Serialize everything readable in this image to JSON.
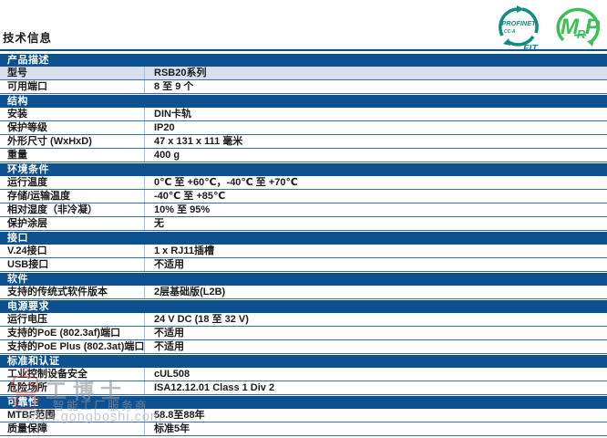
{
  "page": {
    "title": "技术信息"
  },
  "logos": {
    "profinet": {
      "name": "PROFINET",
      "variant": "CC-A",
      "sub": "FIT",
      "color": "#0d8e7e"
    },
    "mrp": {
      "m": "M",
      "r": "R",
      "p": "P",
      "color": "#3cbf55"
    }
  },
  "table": {
    "sections": [
      {
        "title": "产品描述",
        "rows": [
          {
            "label": "型号",
            "value": "RSB20系列",
            "highlight": true
          },
          {
            "label": "可用端口",
            "value": "8 至 9 个",
            "highlight": false
          }
        ]
      },
      {
        "title": "结构",
        "rows": [
          {
            "label": "安装",
            "value": "DIN卡轨",
            "highlight": false
          },
          {
            "label": "保护等级",
            "value": "IP20",
            "highlight": false
          },
          {
            "label": "外形尺寸 (WxHxD)",
            "value": "47 x 131 x 111 毫米",
            "highlight": false
          },
          {
            "label": "重量",
            "value": "400 g",
            "highlight": false
          }
        ]
      },
      {
        "title": "环境条件",
        "rows": [
          {
            "label": "运行温度",
            "value": "0℃ 至 +60℃，-40℃ 至 +70℃",
            "highlight": false
          },
          {
            "label": "存储/运输温度",
            "value": "-40℃ 至 +85℃",
            "highlight": false
          },
          {
            "label": "相对湿度（非冷凝）",
            "value": "10% 至 95%",
            "highlight": false
          },
          {
            "label": "保护涂层",
            "value": "无",
            "highlight": false
          }
        ]
      },
      {
        "title": "接口",
        "rows": [
          {
            "label": "V.24接口",
            "value": "1 x RJ11插槽",
            "highlight": false
          },
          {
            "label": "USB接口",
            "value": "不适用",
            "highlight": false
          }
        ]
      },
      {
        "title": "软件",
        "rows": [
          {
            "label": "支持的传统式软件版本",
            "value": "2层基础版(L2B)",
            "highlight": false
          }
        ]
      },
      {
        "title": "电源要求",
        "rows": [
          {
            "label": "运行电压",
            "value": "24 V DC (18 至 32 V)",
            "highlight": false
          },
          {
            "label": "支持的PoE (802.3af)端口",
            "value": "不适用",
            "highlight": false
          },
          {
            "label": "支持的PoE Plus (802.3at)端口",
            "value": "不适用",
            "highlight": false
          }
        ]
      },
      {
        "title": "标准和认证",
        "rows": [
          {
            "label": "工业控制设备安全",
            "value": "cUL508",
            "highlight": false
          },
          {
            "label": "危险场所",
            "value": "ISA12.12.01 Class 1 Div 2",
            "highlight": false
          }
        ]
      },
      {
        "title": "可靠性",
        "rows": [
          {
            "label": "MTBF范围",
            "value": "58.8至88年",
            "highlight": false
          },
          {
            "label": "质量保障",
            "value": "标准5年",
            "highlight": false
          }
        ]
      }
    ]
  },
  "watermark": {
    "brand": "工博士",
    "tagline": "智能工厂服务商",
    "url": "www.gongboshi.com"
  },
  "colors": {
    "header_blue": "#0d5191",
    "row_highlight": "#d8dfeb",
    "row_border": "#3a6ea8",
    "column_divider": "#aabdd6",
    "mascot_red": "#c0392b"
  }
}
